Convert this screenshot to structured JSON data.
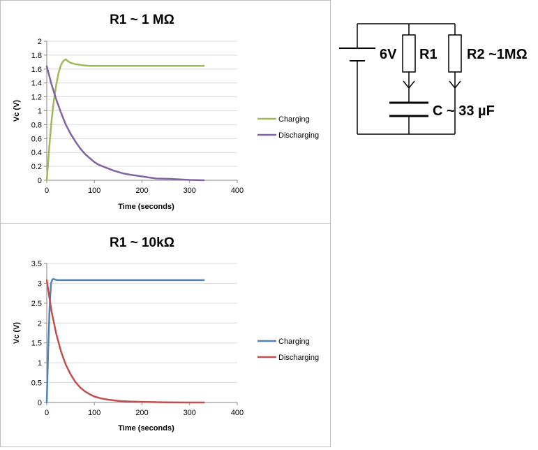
{
  "chart_data": [
    {
      "type": "line",
      "title": "R1 ~ 1 MΩ",
      "xlabel": "Time (seconds)",
      "ylabel": "Vc (V)",
      "xlim": [
        0,
        400
      ],
      "ylim": [
        0,
        2
      ],
      "xticks": [
        0,
        100,
        200,
        300,
        400
      ],
      "yticks": [
        0,
        0.2,
        0.4,
        0.6,
        0.8,
        1,
        1.2,
        1.4,
        1.6,
        1.8,
        2
      ],
      "grid": "horizontal",
      "legend": "right",
      "series": [
        {
          "name": "Charging",
          "color": "#9bbb59",
          "x": [
            0,
            5,
            10,
            15,
            20,
            25,
            30,
            35,
            40,
            45,
            50,
            60,
            75,
            90,
            110,
            150,
            200,
            250,
            300,
            330
          ],
          "y": [
            0,
            0.45,
            0.85,
            1.15,
            1.38,
            1.55,
            1.66,
            1.72,
            1.74,
            1.71,
            1.69,
            1.67,
            1.655,
            1.645,
            1.645,
            1.645,
            1.645,
            1.645,
            1.645,
            1.645
          ]
        },
        {
          "name": "Discharging",
          "color": "#8064a2",
          "x": [
            0,
            10,
            20,
            30,
            40,
            50,
            60,
            70,
            80,
            90,
            100,
            110,
            125,
            140,
            160,
            175,
            200,
            230,
            260,
            300,
            330
          ],
          "y": [
            1.64,
            1.38,
            1.16,
            0.97,
            0.8,
            0.67,
            0.56,
            0.46,
            0.38,
            0.32,
            0.26,
            0.22,
            0.18,
            0.14,
            0.1,
            0.08,
            0.055,
            0.025,
            0.02,
            0.005,
            0.0
          ]
        }
      ]
    },
    {
      "type": "line",
      "title": "R1 ~ 10kΩ",
      "xlabel": "Time (seconds)",
      "ylabel": "Vc (V)",
      "xlim": [
        0,
        400
      ],
      "ylim": [
        0,
        3.5
      ],
      "xticks": [
        0,
        100,
        200,
        300,
        400
      ],
      "yticks": [
        0,
        0.5,
        1,
        1.5,
        2,
        2.5,
        3,
        3.5
      ],
      "grid": "horizontal",
      "legend": "right",
      "series": [
        {
          "name": "Charging",
          "color": "#4f81bd",
          "x": [
            0,
            3,
            6,
            9,
            12,
            15,
            18,
            22,
            30,
            50,
            100,
            200,
            330
          ],
          "y": [
            0,
            1.3,
            2.4,
            3.0,
            3.1,
            3.11,
            3.09,
            3.08,
            3.08,
            3.08,
            3.08,
            3.08,
            3.08
          ]
        },
        {
          "name": "Discharging",
          "color": "#c0504d",
          "x": [
            0,
            10,
            20,
            30,
            40,
            50,
            60,
            70,
            80,
            90,
            100,
            115,
            130,
            150,
            175,
            200,
            250,
            300,
            330
          ],
          "y": [
            3.08,
            2.3,
            1.72,
            1.28,
            0.95,
            0.71,
            0.52,
            0.38,
            0.28,
            0.21,
            0.15,
            0.1,
            0.07,
            0.04,
            0.025,
            0.015,
            0.005,
            0.0,
            0.0
          ]
        }
      ]
    }
  ],
  "circuit": {
    "battery_label": "6V",
    "r1_label": "R1",
    "r2_label": "R2 ~1MΩ",
    "capacitor_label": "C ~ 33 µF"
  }
}
